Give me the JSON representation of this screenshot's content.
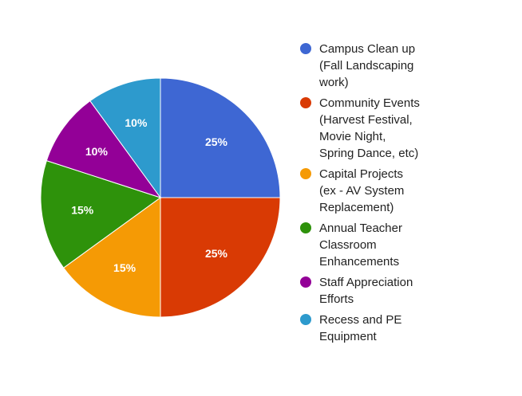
{
  "chart_data": {
    "type": "pie",
    "title": "",
    "slices": [
      {
        "label": "Campus Clean up\n(Fall Landscaping\nwork)",
        "value": 25,
        "display": "25%",
        "color": "#3e67d3"
      },
      {
        "label": "Community Events\n(Harvest Festival,\nMovie Night,\nSpring Dance, etc)",
        "value": 25,
        "display": "25%",
        "color": "#d93a04"
      },
      {
        "label": "Capital Projects\n(ex - AV System\nReplacement)",
        "value": 15,
        "display": "15%",
        "color": "#f59a05"
      },
      {
        "label": "Annual Teacher\nClassroom\nEnhancements",
        "value": 15,
        "display": "15%",
        "color": "#2e920b"
      },
      {
        "label": "Staff Appreciation\nEfforts",
        "value": 10,
        "display": "10%",
        "color": "#930097"
      },
      {
        "label": "Recess and PE\nEquipment",
        "value": 10,
        "display": "10%",
        "color": "#2d9acd"
      }
    ],
    "legend_position": "right"
  }
}
